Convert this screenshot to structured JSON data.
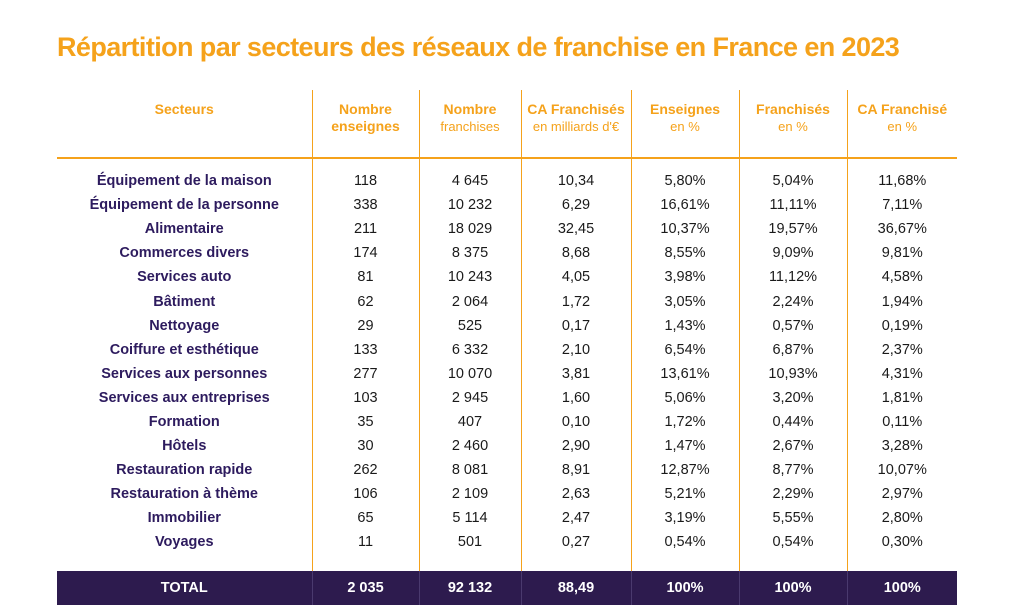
{
  "title": "Répartition par secteurs des réseaux de franchise en France en 2023",
  "headers": {
    "secteurs": "Secteurs",
    "nb_enseignes_1": "Nombre",
    "nb_enseignes_2": "enseignes",
    "nb_franchises_1": "Nombre",
    "nb_franchises_2": "franchises",
    "ca_1": "CA Franchisés",
    "ca_2": "en milliards d'€",
    "ens_pct_1": "Enseignes",
    "ens_pct_2": "en %",
    "fr_pct_1": "Franchisés",
    "fr_pct_2": "en %",
    "ca_pct_1": "CA Franchisé",
    "ca_pct_2": "en %"
  },
  "rows": [
    [
      "Équipement de la maison",
      "118",
      "4 645",
      "10,34",
      "5,80%",
      "5,04%",
      "11,68%"
    ],
    [
      "Équipement de la personne",
      "338",
      "10 232",
      "6,29",
      "16,61%",
      "11,11%",
      "7,11%"
    ],
    [
      "Alimentaire",
      "211",
      "18 029",
      "32,45",
      "10,37%",
      "19,57%",
      "36,67%"
    ],
    [
      "Commerces divers",
      "174",
      "8 375",
      "8,68",
      "8,55%",
      "9,09%",
      "9,81%"
    ],
    [
      "Services auto",
      "81",
      "10 243",
      "4,05",
      "3,98%",
      "11,12%",
      "4,58%"
    ],
    [
      "Bâtiment",
      "62",
      "2 064",
      "1,72",
      "3,05%",
      "2,24%",
      "1,94%"
    ],
    [
      "Nettoyage",
      "29",
      "525",
      "0,17",
      "1,43%",
      "0,57%",
      "0,19%"
    ],
    [
      "Coiffure et esthétique",
      "133",
      "6 332",
      "2,10",
      "6,54%",
      "6,87%",
      "2,37%"
    ],
    [
      "Services aux personnes",
      "277",
      "10 070",
      "3,81",
      "13,61%",
      "10,93%",
      "4,31%"
    ],
    [
      "Services aux entreprises",
      "103",
      "2 945",
      "1,60",
      "5,06%",
      "3,20%",
      "1,81%"
    ],
    [
      "Formation",
      "35",
      "407",
      "0,10",
      "1,72%",
      "0,44%",
      "0,11%"
    ],
    [
      "Hôtels",
      "30",
      "2 460",
      "2,90",
      "1,47%",
      "2,67%",
      "3,28%"
    ],
    [
      "Restauration rapide",
      "262",
      "8 081",
      "8,91",
      "12,87%",
      "8,77%",
      "10,07%"
    ],
    [
      "Restauration à thème",
      "106",
      "2 109",
      "2,63",
      "5,21%",
      "2,29%",
      "2,97%"
    ],
    [
      "Immobilier",
      "65",
      "5 114",
      "2,47",
      "3,19%",
      "5,55%",
      "2,80%"
    ],
    [
      "Voyages",
      "11",
      "501",
      "0,27",
      "0,54%",
      "0,54%",
      "0,30%"
    ]
  ],
  "total": [
    "TOTAL",
    "2 035",
    "92 132",
    "88,49",
    "100%",
    "100%",
    "100%"
  ],
  "colors": {
    "accent": "#f5a21b",
    "total_bg": "#2d1b4e",
    "sector_text": "#2d1b5e"
  }
}
